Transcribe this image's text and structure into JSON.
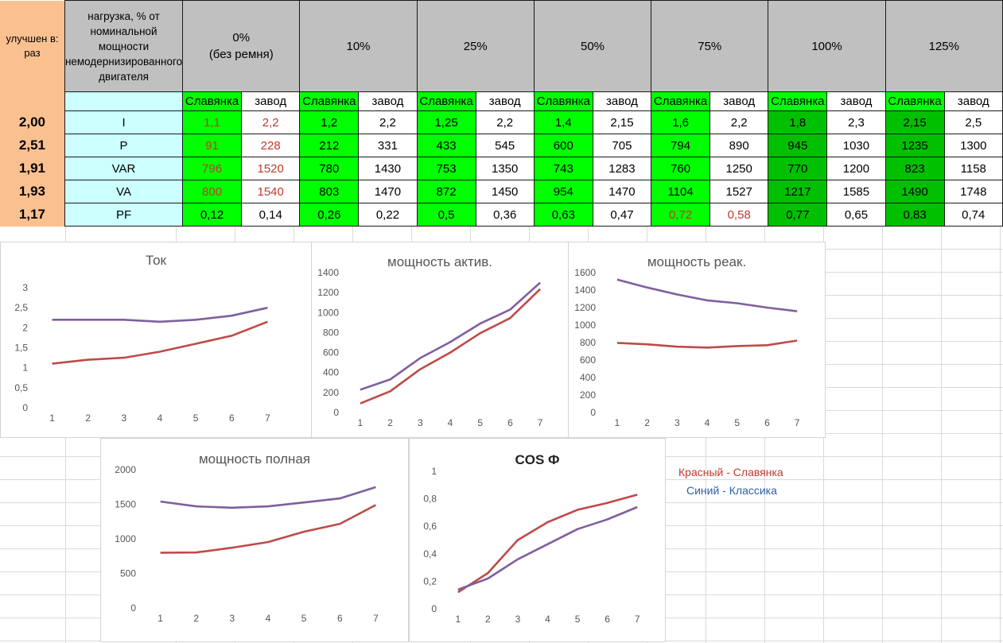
{
  "improvement": {
    "title": "улучшен в: раз",
    "values": [
      "2,00",
      "2,51",
      "1,91",
      "1,93",
      "1,17"
    ]
  },
  "table": {
    "load_label": "нагрузка, % от номинальной мощности немодернизированного двигателя",
    "load_columns": [
      {
        "line1": "0%",
        "line2": "(без ремня)"
      },
      {
        "line1": "10%",
        "line2": ""
      },
      {
        "line1": "25%",
        "line2": ""
      },
      {
        "line1": "50%",
        "line2": ""
      },
      {
        "line1": "75%",
        "line2": ""
      },
      {
        "line1": "100%",
        "line2": ""
      },
      {
        "line1": "125%",
        "line2": ""
      }
    ],
    "sub_slav": "Славянка",
    "sub_zavod": "завод",
    "rows": [
      {
        "label": "I",
        "values": [
          "1,1",
          "2,2",
          "1,2",
          "2,2",
          "1,25",
          "2,2",
          "1,4",
          "2,15",
          "1,6",
          "2,2",
          "1,8",
          "2,3",
          "2,15",
          "2,5"
        ]
      },
      {
        "label": "P",
        "values": [
          "91",
          "228",
          "212",
          "331",
          "433",
          "545",
          "600",
          "705",
          "794",
          "890",
          "945",
          "1030",
          "1235",
          "1300"
        ]
      },
      {
        "label": "VAR",
        "values": [
          "796",
          "1520",
          "780",
          "1430",
          "753",
          "1350",
          "743",
          "1283",
          "760",
          "1250",
          "770",
          "1200",
          "823",
          "1158"
        ]
      },
      {
        "label": "VA",
        "values": [
          "800",
          "1540",
          "803",
          "1470",
          "872",
          "1450",
          "954",
          "1470",
          "1104",
          "1527",
          "1217",
          "1585",
          "1490",
          "1748"
        ]
      },
      {
        "label": "PF",
        "values": [
          "0,12",
          "0,14",
          "0,26",
          "0,22",
          "0,5",
          "0,36",
          "0,63",
          "0,47",
          "0,72",
          "0,58",
          "0,77",
          "0,65",
          "0,83",
          "0,74"
        ]
      }
    ]
  },
  "legend": {
    "red": "Красный - Славянка",
    "blue": "Синий - Классика"
  },
  "colors": {
    "slavyanka_line": "#be4b48",
    "zavod_line": "#7f5f9e",
    "legend_red": "#c0392b",
    "legend_blue": "#2e5fa8",
    "green_light": "#00ff00",
    "green_dark": "#00c000",
    "header_gray": "#c0c0c0",
    "peach": "#fac090",
    "cyan": "#ccffff"
  },
  "chart_data": [
    {
      "type": "line",
      "title": "Ток",
      "categories": [
        "1",
        "2",
        "3",
        "4",
        "5",
        "6",
        "7"
      ],
      "ylim": [
        0,
        3
      ],
      "yticks": [
        "0",
        "0,5",
        "1",
        "1,5",
        "2",
        "2,5",
        "3"
      ],
      "series": [
        {
          "values": [
            1.1,
            1.2,
            1.25,
            1.4,
            1.6,
            1.8,
            2.15
          ]
        },
        {
          "values": [
            2.2,
            2.2,
            2.2,
            2.15,
            2.2,
            2.3,
            2.5
          ]
        }
      ]
    },
    {
      "type": "line",
      "title": "мощность  актив.",
      "categories": [
        "1",
        "2",
        "3",
        "4",
        "5",
        "6",
        "7"
      ],
      "ylim": [
        0,
        1400
      ],
      "yticks": [
        "0",
        "200",
        "400",
        "600",
        "800",
        "1000",
        "1200",
        "1400"
      ],
      "series": [
        {
          "values": [
            91,
            212,
            433,
            600,
            794,
            945,
            1235
          ]
        },
        {
          "values": [
            228,
            331,
            545,
            705,
            890,
            1030,
            1300
          ]
        }
      ]
    },
    {
      "type": "line",
      "title": "мощность  реак.",
      "categories": [
        "1",
        "2",
        "3",
        "4",
        "5",
        "6",
        "7"
      ],
      "ylim": [
        0,
        1600
      ],
      "yticks": [
        "0",
        "200",
        "400",
        "600",
        "800",
        "1000",
        "1200",
        "1400",
        "1600"
      ],
      "series": [
        {
          "values": [
            796,
            780,
            753,
            743,
            760,
            770,
            823
          ]
        },
        {
          "values": [
            1520,
            1430,
            1350,
            1283,
            1250,
            1200,
            1158
          ]
        }
      ]
    },
    {
      "type": "line",
      "title": "мощность  полная",
      "categories": [
        "1",
        "2",
        "3",
        "4",
        "5",
        "6",
        "7"
      ],
      "ylim": [
        0,
        2000
      ],
      "yticks": [
        "0",
        "500",
        "1000",
        "1500",
        "2000"
      ],
      "series": [
        {
          "values": [
            800,
            803,
            872,
            954,
            1104,
            1217,
            1490
          ]
        },
        {
          "values": [
            1540,
            1470,
            1450,
            1470,
            1527,
            1585,
            1748
          ]
        }
      ]
    },
    {
      "type": "line",
      "title": "COS  Ф",
      "categories": [
        "1",
        "2",
        "3",
        "4",
        "5",
        "6",
        "7"
      ],
      "ylim": [
        0,
        1
      ],
      "yticks": [
        "0",
        "0,2",
        "0,4",
        "0,6",
        "0,8",
        "1"
      ],
      "series": [
        {
          "values": [
            0.12,
            0.26,
            0.5,
            0.63,
            0.72,
            0.77,
            0.83
          ]
        },
        {
          "values": [
            0.14,
            0.22,
            0.36,
            0.47,
            0.58,
            0.65,
            0.74
          ]
        }
      ]
    }
  ]
}
